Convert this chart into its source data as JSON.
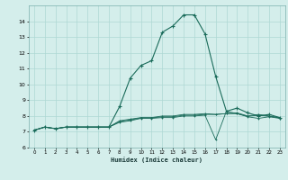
{
  "title": "",
  "xlabel": "Humidex (Indice chaleur)",
  "ylabel": "",
  "x_values": [
    0,
    1,
    2,
    3,
    4,
    5,
    6,
    7,
    8,
    9,
    10,
    11,
    12,
    13,
    14,
    15,
    16,
    17,
    18,
    19,
    20,
    21,
    22,
    23
  ],
  "y_main": [
    7.1,
    7.3,
    7.2,
    7.3,
    7.3,
    7.3,
    7.3,
    7.3,
    8.6,
    10.4,
    11.2,
    11.5,
    13.3,
    13.7,
    14.4,
    14.4,
    13.2,
    10.5,
    8.3,
    8.5,
    8.2,
    8.0,
    8.1,
    7.9
  ],
  "y_extra1": [
    7.1,
    7.3,
    7.2,
    7.3,
    7.3,
    7.3,
    7.3,
    7.3,
    7.7,
    7.8,
    7.9,
    7.9,
    8.0,
    8.0,
    8.1,
    8.1,
    8.15,
    8.1,
    8.15,
    8.2,
    8.0,
    8.1,
    8.0,
    7.9
  ],
  "y_extra2": [
    7.1,
    7.3,
    7.2,
    7.3,
    7.3,
    7.3,
    7.3,
    7.3,
    7.6,
    7.7,
    7.85,
    7.85,
    7.9,
    7.9,
    8.0,
    8.0,
    8.05,
    6.5,
    8.3,
    8.15,
    7.95,
    7.85,
    7.95,
    7.85
  ],
  "y_extra3": [
    7.1,
    7.3,
    7.2,
    7.3,
    7.3,
    7.3,
    7.3,
    7.3,
    7.65,
    7.75,
    7.88,
    7.88,
    7.95,
    7.95,
    8.05,
    8.05,
    8.1,
    8.1,
    8.15,
    8.15,
    7.98,
    8.05,
    7.98,
    7.88
  ],
  "line_color": "#1a6b5a",
  "bg_color": "#d4eeeb",
  "grid_color": "#aed8d4",
  "ylim": [
    6,
    15
  ],
  "xlim": [
    -0.5,
    23.5
  ],
  "yticks": [
    6,
    7,
    8,
    9,
    10,
    11,
    12,
    13,
    14
  ],
  "xticks": [
    0,
    1,
    2,
    3,
    4,
    5,
    6,
    7,
    8,
    9,
    10,
    11,
    12,
    13,
    14,
    15,
    16,
    17,
    18,
    19,
    20,
    21,
    22,
    23
  ]
}
